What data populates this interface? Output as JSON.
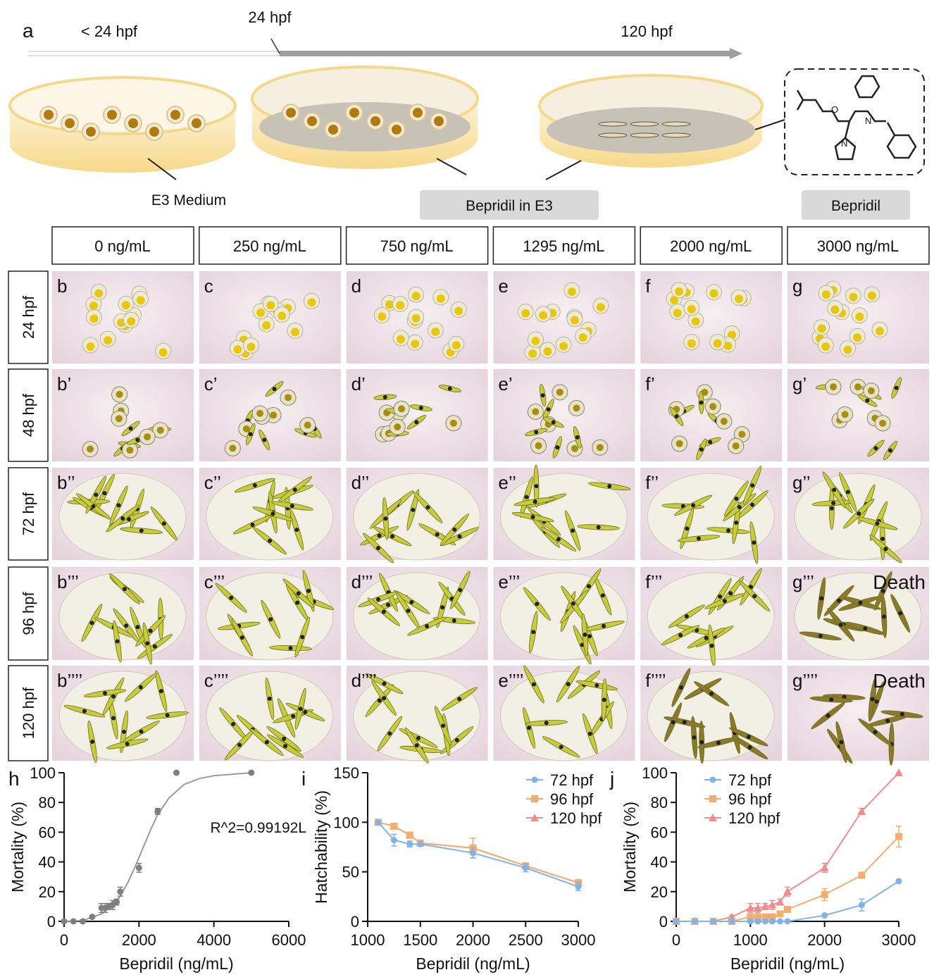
{
  "figure": {
    "timeline": {
      "panel_label": "a",
      "labels": [
        "< 24 hpf",
        "24 hpf",
        "120 hpf"
      ],
      "dish_label": "E3 Medium",
      "treatment_label": "Bepridil in E3",
      "compound_label": "Bepridil"
    },
    "grid": {
      "columns": [
        "0 ng/mL",
        "250 ng/mL",
        "750 ng/mL",
        "1295 ng/mL",
        "2000 ng/mL",
        "3000 ng/mL"
      ],
      "rows": [
        "24 hpf",
        "48 hpf",
        "72 hpf",
        "96 hpf",
        "120 hpf"
      ],
      "panels": [
        [
          {
            "label": "b"
          },
          {
            "label": "c"
          },
          {
            "label": "d"
          },
          {
            "label": "e"
          },
          {
            "label": "f"
          },
          {
            "label": "g"
          }
        ],
        [
          {
            "label": "b’"
          },
          {
            "label": "c’"
          },
          {
            "label": "d’"
          },
          {
            "label": "e’"
          },
          {
            "label": "f’"
          },
          {
            "label": "g’"
          }
        ],
        [
          {
            "label": "b’’"
          },
          {
            "label": "c’’"
          },
          {
            "label": "d’’"
          },
          {
            "label": "e’’"
          },
          {
            "label": "f’’"
          },
          {
            "label": "g’’"
          }
        ],
        [
          {
            "label": "b’’’"
          },
          {
            "label": "c’’’"
          },
          {
            "label": "d’’’"
          },
          {
            "label": "e’’’"
          },
          {
            "label": "f’’’"
          },
          {
            "label": "g’’’",
            "note": "Death"
          }
        ],
        [
          {
            "label": "b’’’’"
          },
          {
            "label": "c’’’’"
          },
          {
            "label": "d’’’’"
          },
          {
            "label": "e’’’’"
          },
          {
            "label": "f’’’’"
          },
          {
            "label": "g’’’’",
            "note": "Death"
          }
        ]
      ]
    }
  },
  "chart_data": [
    {
      "type": "scatter",
      "panel_label": "h",
      "x_label": "Bepridil (ng/mL)",
      "y_label": "Mortality (%)",
      "annotation": "R^2=0.99192L",
      "x": [
        0,
        250,
        500,
        750,
        1000,
        1100,
        1200,
        1295,
        1400,
        1500,
        2000,
        2500,
        3000,
        5000
      ],
      "values": [
        0,
        0,
        0,
        3,
        9,
        9,
        10,
        11,
        13,
        20,
        36,
        74,
        100,
        100
      ],
      "errors": [
        0,
        0,
        0,
        0,
        3,
        3,
        2,
        3,
        2,
        3,
        3,
        2,
        0,
        0
      ],
      "color": "#7f7f7f",
      "fit": {
        "x": [
          0,
          500,
          1000,
          1300,
          1500,
          1700,
          1900,
          2100,
          2300,
          2500,
          2800,
          3200,
          3600,
          4000,
          4500,
          5000
        ],
        "values": [
          0,
          0.5,
          5,
          11,
          17,
          26,
          37,
          49,
          61,
          72,
          83,
          92,
          96,
          98,
          99,
          100
        ],
        "color": "#9a9a9a"
      },
      "xlim": [
        0,
        6000
      ],
      "xticks": [
        0,
        2000,
        4000,
        6000
      ],
      "ylim": [
        0,
        100
      ],
      "yticks": [
        0,
        20,
        40,
        60,
        80,
        100
      ]
    },
    {
      "type": "line",
      "panel_label": "i",
      "x_label": "Bepridil (ng/mL)",
      "y_label": "Hatchability (%)",
      "x": [
        1100,
        1250,
        1400,
        1500,
        2000,
        2500,
        3000
      ],
      "series": [
        {
          "name": "72 hpf",
          "color": "#7fb3ea",
          "marker": "circle",
          "values": [
            100,
            82,
            78,
            78,
            69,
            54,
            35
          ],
          "errors": [
            0,
            6,
            3,
            2,
            5,
            4,
            4
          ]
        },
        {
          "name": "96 hpf",
          "color": "#f6ad6c",
          "marker": "square",
          "values": [
            100,
            96,
            87,
            79,
            74,
            56,
            39
          ],
          "errors": [
            0,
            3,
            2,
            1,
            10,
            2,
            3
          ]
        },
        {
          "name": "120 hpf",
          "color": "#f08c8c",
          "marker": "triangle",
          "values": [
            100,
            96,
            87,
            79,
            74,
            56,
            39
          ],
          "errors": [
            0,
            3,
            2,
            1,
            10,
            2,
            3
          ]
        }
      ],
      "xlim": [
        1000,
        3000
      ],
      "xticks": [
        1000,
        1500,
        2000,
        2500,
        3000
      ],
      "ylim": [
        0,
        150
      ],
      "yticks": [
        0,
        50,
        100,
        150
      ],
      "legend": "upper right"
    },
    {
      "type": "line",
      "panel_label": "j",
      "x_label": "Bepridil (ng/mL)",
      "y_label": "Mortality (%)",
      "x": [
        0,
        250,
        500,
        750,
        1000,
        1100,
        1200,
        1295,
        1400,
        1500,
        2000,
        2500,
        3000
      ],
      "series": [
        {
          "name": "72 hpf",
          "color": "#7fb3ea",
          "marker": "circle",
          "values": [
            0,
            0,
            0,
            0,
            0,
            0,
            0,
            0,
            0,
            0,
            4,
            11,
            27
          ],
          "errors": [
            0,
            0,
            0,
            0,
            0,
            0,
            0,
            0,
            0,
            0,
            1,
            4,
            1
          ]
        },
        {
          "name": "96 hpf",
          "color": "#f6ad6c",
          "marker": "square",
          "values": [
            0,
            0,
            0,
            0,
            3,
            3,
            3,
            3,
            5,
            8,
            18,
            31,
            57
          ],
          "errors": [
            0,
            0,
            0,
            0,
            1,
            1,
            1,
            1,
            1,
            1,
            4,
            1,
            7
          ]
        },
        {
          "name": "120 hpf",
          "color": "#f08c8c",
          "marker": "triangle",
          "values": [
            0,
            0,
            0,
            3,
            9,
            9,
            10,
            11,
            13,
            20,
            36,
            74,
            100
          ],
          "errors": [
            0,
            0,
            0,
            1,
            3,
            3,
            2,
            3,
            2,
            3,
            3,
            2,
            0
          ]
        }
      ],
      "xlim": [
        0,
        3000
      ],
      "xticks": [
        0,
        1000,
        2000,
        3000
      ],
      "ylim": [
        0,
        100
      ],
      "yticks": [
        0,
        20,
        40,
        60,
        80,
        100
      ],
      "legend": "upper left"
    }
  ]
}
